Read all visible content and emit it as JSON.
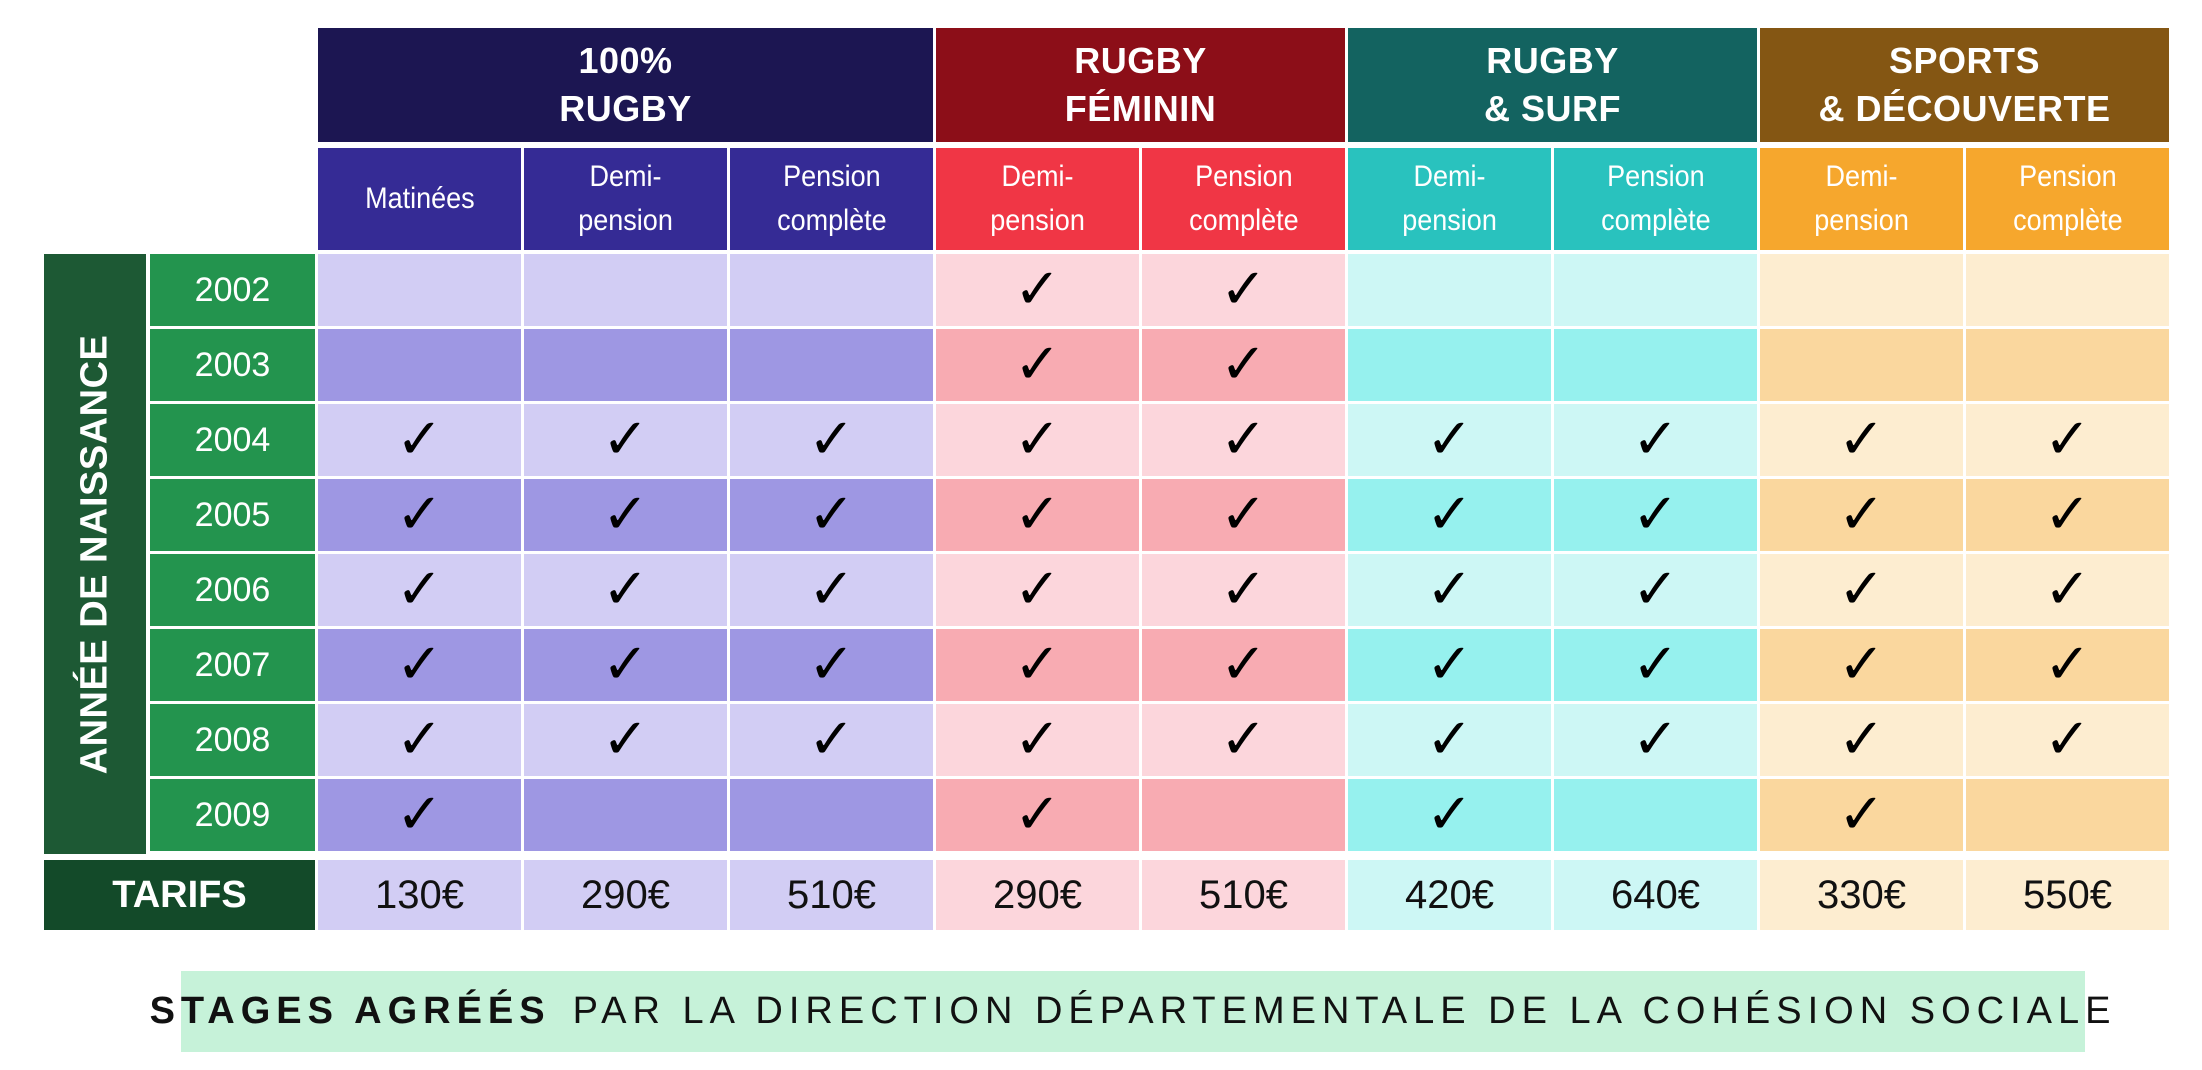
{
  "groups": [
    {
      "line1": "100%",
      "line2": "RUGBY",
      "color": "#1c1652",
      "options": [
        {
          "line1": "Matinées",
          "line2": ""
        },
        {
          "line1": "Demi-",
          "line2": "pension"
        },
        {
          "line1": "Pension",
          "line2": "complète"
        }
      ],
      "sub_color": "#352b95",
      "light": "#d2cdf4",
      "dark": "#9e97e3"
    },
    {
      "line1": "RUGBY",
      "line2": "FÉMININ",
      "color": "#8c0e18",
      "options": [
        {
          "line1": "Demi-",
          "line2": "pension"
        },
        {
          "line1": "Pension",
          "line2": "complète"
        }
      ],
      "sub_color": "#f03645",
      "light": "#fcd6dc",
      "dark": "#f8abb2"
    },
    {
      "line1": "RUGBY",
      "line2": "& SURF",
      "color": "#136360",
      "options": [
        {
          "line1": "Demi-",
          "line2": "pension"
        },
        {
          "line1": "Pension",
          "line2": "complète"
        }
      ],
      "sub_color": "#29c2be",
      "light": "#cdf7f5",
      "dark": "#96f1ee"
    },
    {
      "line1": "SPORTS",
      "line2": "& DÉCOUVERTE",
      "color": "#845613",
      "options": [
        {
          "line1": "Demi-",
          "line2": "pension"
        },
        {
          "line1": "Pension",
          "line2": "complète"
        }
      ],
      "sub_color": "#f6a72d",
      "light": "#fdedd0",
      "dark": "#fad79e"
    }
  ],
  "side_label": "ANNÉE DE NAISSANCE",
  "rows": [
    {
      "year": "2002",
      "checks": [
        false,
        false,
        false,
        true,
        true,
        false,
        false,
        false,
        false
      ]
    },
    {
      "year": "2003",
      "checks": [
        false,
        false,
        false,
        true,
        true,
        false,
        false,
        false,
        false
      ]
    },
    {
      "year": "2004",
      "checks": [
        true,
        true,
        true,
        true,
        true,
        true,
        true,
        true,
        true
      ]
    },
    {
      "year": "2005",
      "checks": [
        true,
        true,
        true,
        true,
        true,
        true,
        true,
        true,
        true
      ]
    },
    {
      "year": "2006",
      "checks": [
        true,
        true,
        true,
        true,
        true,
        true,
        true,
        true,
        true
      ]
    },
    {
      "year": "2007",
      "checks": [
        true,
        true,
        true,
        true,
        true,
        true,
        true,
        true,
        true
      ]
    },
    {
      "year": "2008",
      "checks": [
        true,
        true,
        true,
        true,
        true,
        true,
        true,
        true,
        true
      ]
    },
    {
      "year": "2009",
      "checks": [
        true,
        false,
        false,
        true,
        false,
        true,
        false,
        true,
        false
      ]
    }
  ],
  "check_glyph": "✓",
  "tarifs_label": "TARIFS",
  "tarifs": [
    "130€",
    "290€",
    "510€",
    "290€",
    "510€",
    "420€",
    "640€",
    "330€",
    "550€"
  ],
  "banner": {
    "bold": "STAGES AGRÉÉS",
    "rest": "PAR LA DIRECTION DÉPARTEMENTALE DE LA COHÉSION SOCIALE"
  },
  "colors": {
    "year_bg": "#23944e",
    "side_bg": "#1d5934",
    "tarifs_bg": "#134a29",
    "banner_bg": "#c6f2d9"
  }
}
